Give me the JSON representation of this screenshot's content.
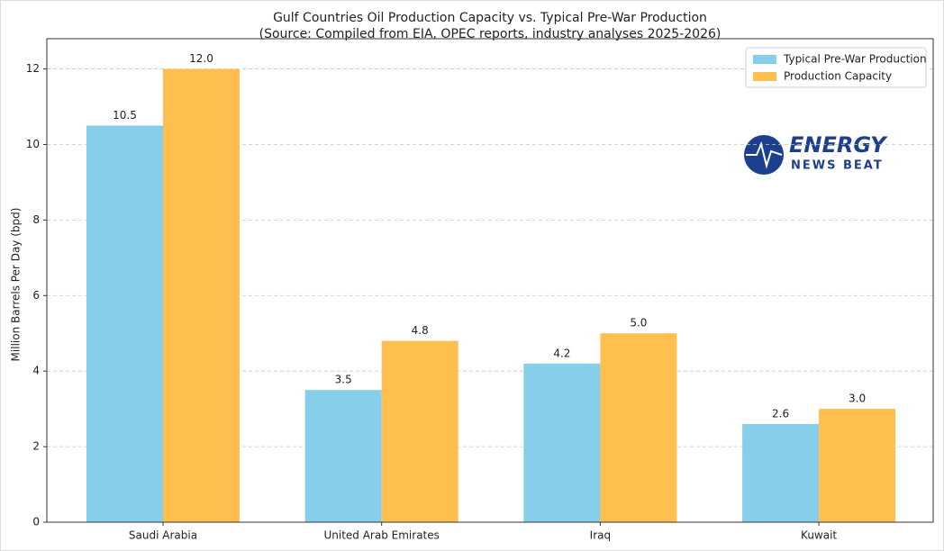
{
  "chart_data": {
    "type": "bar",
    "title": "Gulf Countries Oil Production Capacity vs. Typical Pre-War Production",
    "subtitle": "(Source: Compiled from EIA, OPEC reports, industry analyses 2025-2026)",
    "y_label": "Million Barrels Per Day (bpd)",
    "categories": [
      "Saudi Arabia",
      "United Arab Emirates",
      "Iraq",
      "Kuwait"
    ],
    "series": [
      {
        "name": "Typical Pre-War Production",
        "color": "#87ceeb",
        "values": [
          10.5,
          3.5,
          4.2,
          2.6
        ],
        "value_labels": [
          "10.5",
          "3.5",
          "4.2",
          "2.6"
        ]
      },
      {
        "name": "Production Capacity",
        "color": "#ffbf4f",
        "values": [
          12.0,
          4.8,
          5.0,
          3.0
        ],
        "value_labels": [
          "12.0",
          "4.8",
          "5.0",
          "3.0"
        ]
      }
    ],
    "ylim": [
      0,
      12.8
    ],
    "yticks": [
      0,
      2,
      4,
      6,
      8,
      10,
      12
    ],
    "grid": true,
    "legend": "upper right",
    "watermark": {
      "line1": "ENERGY",
      "line2": "NEWS BEAT"
    }
  }
}
